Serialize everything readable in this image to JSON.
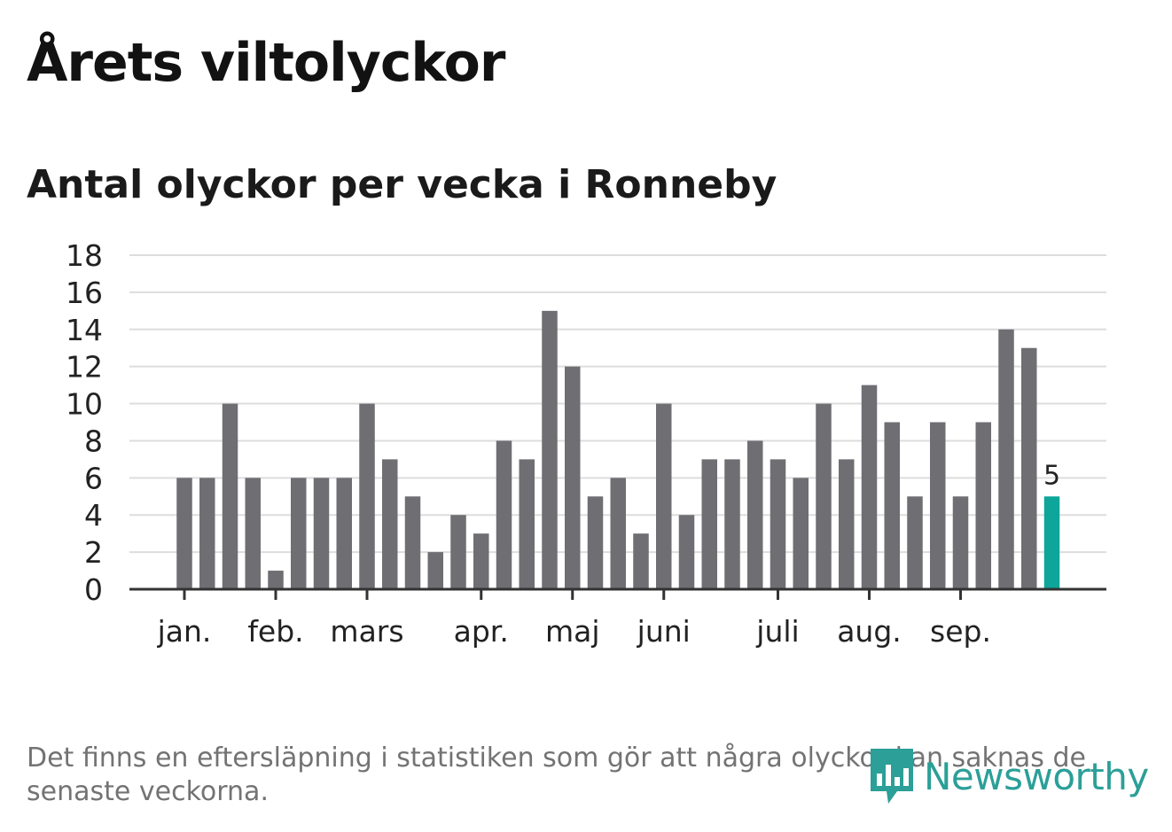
{
  "title": "Årets viltolyckor",
  "subtitle": "Antal olyckor per vecka i Ronneby",
  "footnote": "Det finns en eftersläpning i statistiken som gör att några olyckor kan saknas de senaste veckorna.",
  "logo_text": "Newsworthy",
  "colors": {
    "bar": "#6f6e73",
    "highlight": "#0ea59a",
    "grid": "#dddddd",
    "axis": "#333333",
    "logo": "#2b9f98"
  },
  "chart_data": {
    "type": "bar",
    "title": "Antal olyckor per vecka i Ronneby",
    "xlabel": "",
    "ylabel": "",
    "ylim": [
      0,
      18
    ],
    "yticks": [
      0,
      2,
      4,
      6,
      8,
      10,
      12,
      14,
      16,
      18
    ],
    "grid": true,
    "weeks": [
      1,
      2,
      3,
      4,
      5,
      6,
      7,
      8,
      9,
      10,
      11,
      12,
      13,
      14,
      15,
      16,
      17,
      18,
      19,
      20,
      21,
      22,
      23,
      24,
      25,
      26,
      27,
      28,
      29,
      30,
      31,
      32,
      33,
      34,
      35,
      36,
      37,
      38,
      39
    ],
    "values": [
      6,
      6,
      10,
      6,
      1,
      6,
      6,
      6,
      10,
      7,
      5,
      2,
      4,
      3,
      8,
      7,
      15,
      12,
      5,
      6,
      3,
      10,
      4,
      7,
      7,
      8,
      7,
      6,
      10,
      7,
      11,
      9,
      5,
      9,
      5,
      9,
      14,
      13,
      5
    ],
    "highlight_last": true,
    "highlight_label": "5",
    "month_ticks": [
      {
        "label": "jan.",
        "week": 1
      },
      {
        "label": "feb.",
        "week": 5
      },
      {
        "label": "mars",
        "week": 9
      },
      {
        "label": "apr.",
        "week": 14
      },
      {
        "label": "maj",
        "week": 18
      },
      {
        "label": "juni",
        "week": 22
      },
      {
        "label": "juli",
        "week": 27
      },
      {
        "label": "aug.",
        "week": 31
      },
      {
        "label": "sep.",
        "week": 35
      }
    ]
  }
}
